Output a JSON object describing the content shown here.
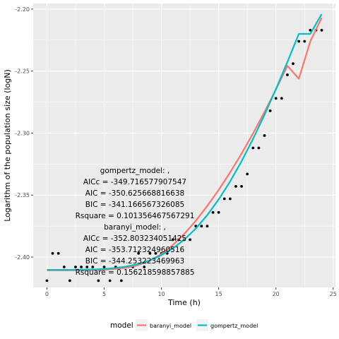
{
  "chart_data": {
    "type": "scatter",
    "title": "",
    "xlabel": "Time (h)",
    "ylabel": "Logarithm of the population size (logN)",
    "xlim": [
      -1.2,
      25.2
    ],
    "ylim": [
      -2.4245,
      -2.1955
    ],
    "x_ticks": [
      0,
      5,
      10,
      15,
      20,
      25
    ],
    "x_tick_labels": [
      "0",
      "5",
      "10",
      "15",
      "20",
      "25"
    ],
    "y_ticks": [
      -2.4,
      -2.35,
      -2.3,
      -2.25,
      -2.2
    ],
    "y_tick_labels": [
      "-2.40",
      "-2.35",
      "-2.30",
      "-2.25",
      "-2.20"
    ],
    "grid": true,
    "legend": {
      "title": "model",
      "position": "bottom",
      "entries": [
        {
          "label": "baranyi_model",
          "color": "#F8766D"
        },
        {
          "label": "gompertz_model",
          "color": "#00BFC4"
        }
      ]
    },
    "observed": {
      "x": [
        0,
        0.5,
        1,
        1.5,
        2,
        2.5,
        3,
        3.5,
        4,
        4.5,
        5,
        5.5,
        6,
        6.5,
        7,
        7.5,
        8,
        8.5,
        9,
        9.5,
        10,
        10.5,
        11,
        11.5,
        12,
        12.5,
        13,
        13.5,
        14,
        14.5,
        15,
        15.5,
        16,
        16.5,
        17,
        17.5,
        18,
        18.5,
        19,
        19.5,
        20,
        20.5,
        21,
        21.5,
        22,
        22.5,
        23,
        23.5,
        24
      ],
      "y": [
        -2.419,
        -2.397,
        -2.397,
        -2.408,
        -2.419,
        -2.408,
        -2.408,
        -2.408,
        -2.408,
        -2.419,
        -2.408,
        -2.419,
        -2.408,
        -2.419,
        -2.408,
        -2.408,
        -2.397,
        -2.408,
        -2.397,
        -2.397,
        -2.397,
        -2.397,
        -2.386,
        -2.386,
        -2.386,
        -2.386,
        -2.375,
        -2.375,
        -2.375,
        -2.364,
        -2.364,
        -2.353,
        -2.353,
        -2.343,
        -2.343,
        -2.333,
        -2.312,
        -2.312,
        -2.302,
        -2.282,
        -2.272,
        -2.272,
        -2.253,
        -2.244,
        -2.226,
        -2.226,
        -2.217,
        -2.217,
        -2.217
      ]
    },
    "series": [
      {
        "name": "baranyi_model",
        "color": "#F8766D",
        "x": [
          0,
          1,
          2,
          3,
          4,
          5,
          6,
          7,
          8,
          9,
          10,
          11,
          12,
          13,
          14,
          15,
          16,
          17,
          18,
          19,
          20,
          21,
          22,
          23,
          24
        ],
        "y": [
          -2.4107,
          -2.4107,
          -2.4107,
          -2.4106,
          -2.4105,
          -2.4102,
          -2.4096,
          -2.4085,
          -2.4064,
          -2.4029,
          -2.3976,
          -2.3903,
          -2.3813,
          -2.3707,
          -2.3588,
          -2.3458,
          -2.3317,
          -2.3165,
          -2.3003,
          -2.283,
          -2.2648,
          -2.2457,
          -2.2562,
          -2.226,
          -2.207
        ]
      },
      {
        "name": "gompertz_model",
        "color": "#00BFC4",
        "x": [
          0,
          1,
          2,
          3,
          4,
          5,
          6,
          7,
          8,
          9,
          10,
          11,
          12,
          13,
          14,
          15,
          16,
          17,
          18,
          19,
          20,
          21,
          22,
          23,
          24
        ],
        "y": [
          -2.4103,
          -2.4103,
          -2.4103,
          -2.4102,
          -2.41,
          -2.4096,
          -2.4088,
          -2.4075,
          -2.4055,
          -2.4026,
          -2.3985,
          -2.393,
          -2.3859,
          -2.377,
          -2.3662,
          -2.3535,
          -2.339,
          -2.3227,
          -2.3047,
          -2.2853,
          -2.2645,
          -2.2427,
          -2.22,
          -2.22,
          -2.204
        ]
      }
    ],
    "annotation_lines": [
      "gompertz_model: ,",
      "AICc = -349.716577907547",
      "AIC = -350.625668816638",
      "BIC = -341.166567326085",
      "Rsquare = 0.101356467567291",
      "baranyi_model: ,",
      "AICc = -352.803234051425",
      "AIC = -353.712324960516",
      "BIC = -344.253223469963",
      "Rsquare = 0.156218598857885"
    ]
  }
}
